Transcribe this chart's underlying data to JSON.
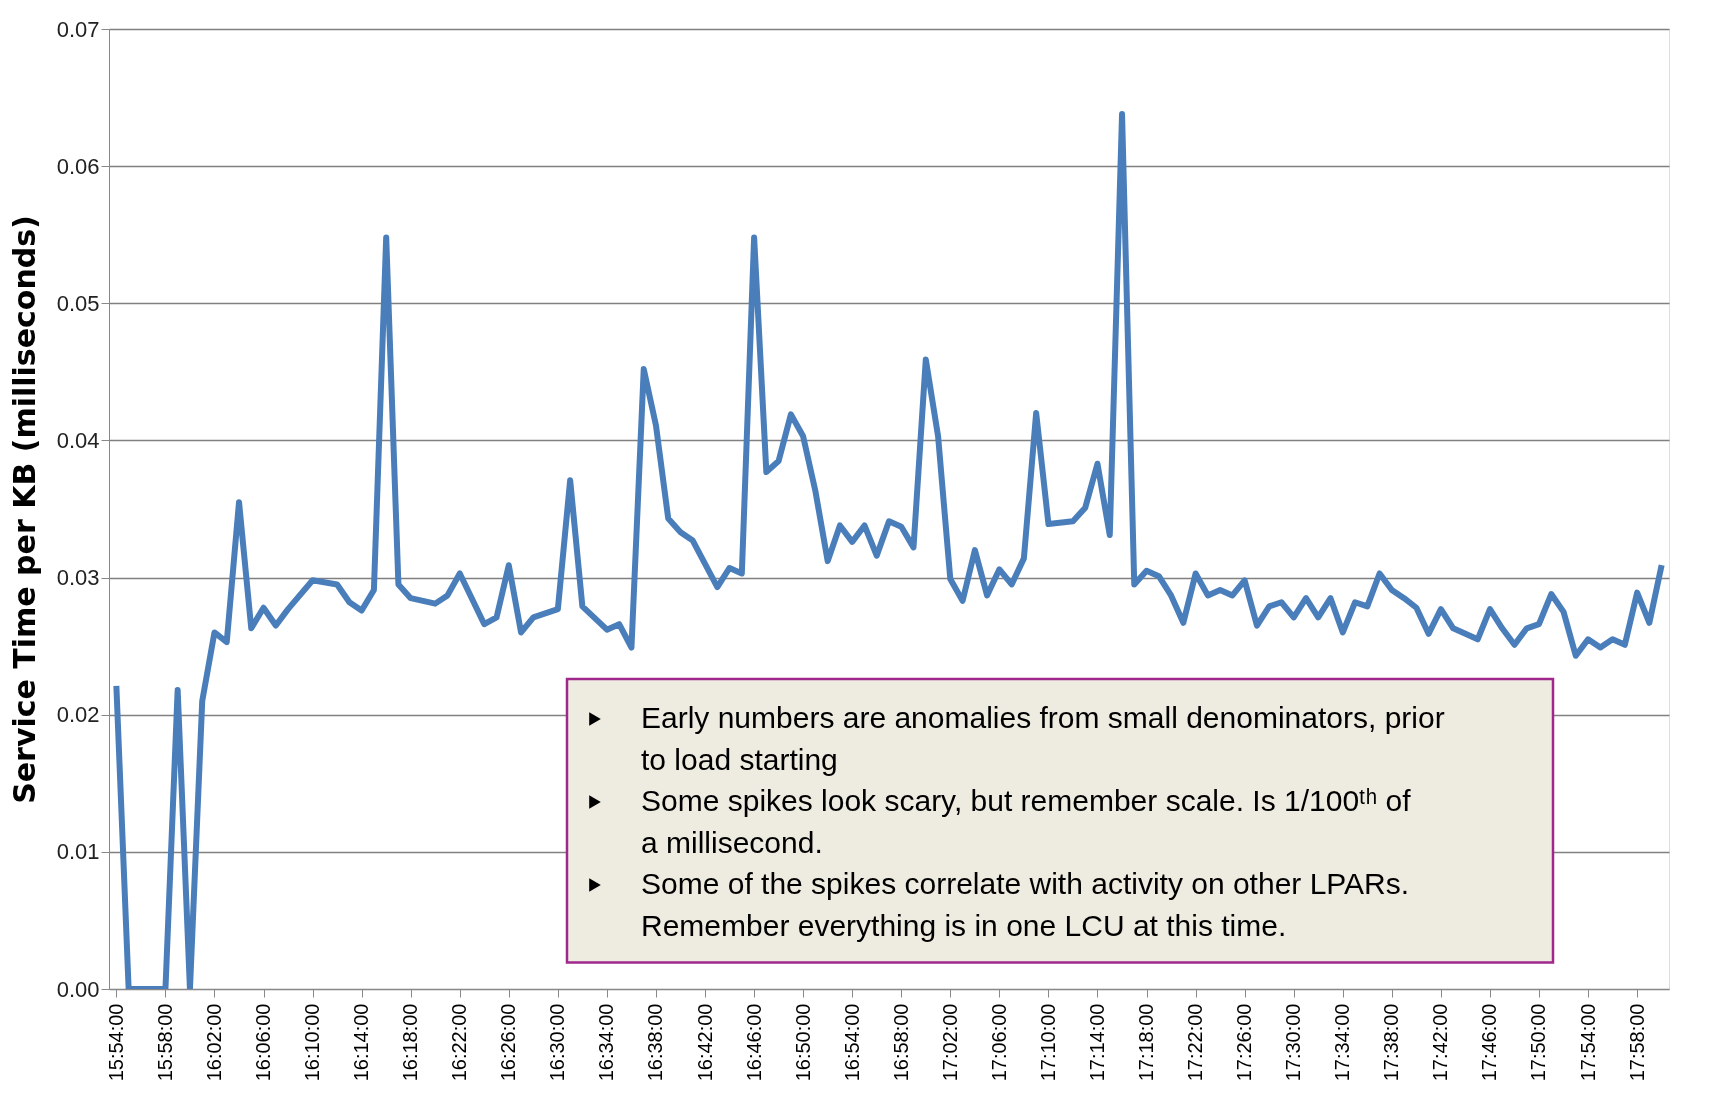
{
  "chart_data": {
    "type": "line",
    "ylabel": "Service Time per KB (milliseconds)",
    "x": [
      15.9,
      15.9167,
      15.9667,
      15.9833,
      16.0,
      16.0167,
      16.0333,
      16.05,
      16.0667,
      16.0833,
      16.1,
      16.1167,
      16.1333,
      16.1667,
      16.2,
      16.2167,
      16.2333,
      16.25,
      16.2667,
      16.2833,
      16.3,
      16.3333,
      16.35,
      16.3667,
      16.4,
      16.4167,
      16.4333,
      16.45,
      16.4667,
      16.5,
      16.5167,
      16.5333,
      16.5667,
      16.5833,
      16.6,
      16.6167,
      16.6333,
      16.65,
      16.6667,
      16.6833,
      16.7167,
      16.7333,
      16.75,
      16.7667,
      16.7833,
      16.8,
      16.8167,
      16.8333,
      16.85,
      16.8667,
      16.8833,
      16.9,
      16.9167,
      16.9333,
      16.95,
      16.9667,
      16.9833,
      17.0,
      17.0167,
      17.0333,
      17.05,
      17.0667,
      17.0833,
      17.1,
      17.1167,
      17.1333,
      17.15,
      17.1667,
      17.2,
      17.2167,
      17.2333,
      17.25,
      17.2667,
      17.2833,
      17.3,
      17.3167,
      17.3333,
      17.35,
      17.3667,
      17.3833,
      17.4,
      17.4167,
      17.4333,
      17.45,
      17.4667,
      17.4833,
      17.5,
      17.5167,
      17.5333,
      17.55,
      17.5667,
      17.5833,
      17.6,
      17.6167,
      17.6333,
      17.65,
      17.6667,
      17.6833,
      17.7,
      17.7167,
      17.75,
      17.7667,
      17.7833,
      17.8,
      17.8167,
      17.8333,
      17.85,
      17.8667,
      17.8833,
      17.9,
      17.9167,
      17.9333,
      17.95,
      17.9667,
      17.9833,
      18.0
    ],
    "series": [
      {
        "color": "#4a7ebb",
        "values": [
          0.0221,
          0,
          0,
          0.0218,
          0,
          0.021,
          0.026,
          0.0253,
          0.0355,
          0.0263,
          0.0278,
          0.0265,
          0.0277,
          0.0298,
          0.0295,
          0.0282,
          0.0276,
          0.0291,
          0.0548,
          0.0295,
          0.0285,
          0.0281,
          0.0287,
          0.0303,
          0.0266,
          0.0271,
          0.0309,
          0.026,
          0.0271,
          0.0277,
          0.0371,
          0.0279,
          0.0262,
          0.0266,
          0.0249,
          0.0452,
          0.0411,
          0.0343,
          0.0333,
          0.0327,
          0.0293,
          0.0307,
          0.0303,
          0.0548,
          0.0377,
          0.0385,
          0.0419,
          0.0403,
          0.0363,
          0.0312,
          0.0338,
          0.0326,
          0.0338,
          0.0316,
          0.0341,
          0.0337,
          0.0322,
          0.0459,
          0.0403,
          0.0299,
          0.0283,
          0.032,
          0.0287,
          0.0306,
          0.0295,
          0.0314,
          0.042,
          0.0339,
          0.0341,
          0.0351,
          0.0383,
          0.0331,
          0.0638,
          0.0295,
          0.0305,
          0.0301,
          0.0287,
          0.0267,
          0.0303,
          0.0287,
          0.0291,
          0.0287,
          0.0298,
          0.0265,
          0.0279,
          0.0282,
          0.0271,
          0.0285,
          0.0271,
          0.0285,
          0.026,
          0.0282,
          0.0279,
          0.0303,
          0.0291,
          0.0285,
          0.0278,
          0.0259,
          0.0277,
          0.0263,
          0.0255,
          0.0277,
          0.0263,
          0.0251,
          0.0263,
          0.0266,
          0.0288,
          0.0275,
          0.0243,
          0.0255,
          0.0249,
          0.0255,
          0.0251,
          0.0289,
          0.0267,
          0.0309
        ]
      }
    ],
    "xlim": [
      15.89,
      18.01
    ],
    "xticks": [
      {
        "value": 15.9,
        "label": "15:54:00"
      },
      {
        "value": 15.9667,
        "label": "15:58:00"
      },
      {
        "value": 16.0333,
        "label": "16:02:00"
      },
      {
        "value": 16.1,
        "label": "16:06:00"
      },
      {
        "value": 16.1667,
        "label": "16:10:00"
      },
      {
        "value": 16.2333,
        "label": "16:14:00"
      },
      {
        "value": 16.3,
        "label": "16:18:00"
      },
      {
        "value": 16.3667,
        "label": "16:22:00"
      },
      {
        "value": 16.4333,
        "label": "16:26:00"
      },
      {
        "value": 16.5,
        "label": "16:30:00"
      },
      {
        "value": 16.5667,
        "label": "16:34:00"
      },
      {
        "value": 16.6333,
        "label": "16:38:00"
      },
      {
        "value": 16.7,
        "label": "16:42:00"
      },
      {
        "value": 16.7667,
        "label": "16:46:00"
      },
      {
        "value": 16.8333,
        "label": "16:50:00"
      },
      {
        "value": 16.9,
        "label": "16:54:00"
      },
      {
        "value": 16.9667,
        "label": "16:58:00"
      },
      {
        "value": 17.0333,
        "label": "17:02:00"
      },
      {
        "value": 17.1,
        "label": "17:06:00"
      },
      {
        "value": 17.1667,
        "label": "17:10:00"
      },
      {
        "value": 17.2333,
        "label": "17:14:00"
      },
      {
        "value": 17.3,
        "label": "17:18:00"
      },
      {
        "value": 17.3667,
        "label": "17:22:00"
      },
      {
        "value": 17.4333,
        "label": "17:26:00"
      },
      {
        "value": 17.5,
        "label": "17:30:00"
      },
      {
        "value": 17.5667,
        "label": "17:34:00"
      },
      {
        "value": 17.6333,
        "label": "17:38:00"
      },
      {
        "value": 17.7,
        "label": "17:42:00"
      },
      {
        "value": 17.7667,
        "label": "17:46:00"
      },
      {
        "value": 17.8333,
        "label": "17:50:00"
      },
      {
        "value": 17.9,
        "label": "17:54:00"
      },
      {
        "value": 17.9667,
        "label": "17:58:00"
      }
    ],
    "ylim": [
      0,
      0.07
    ],
    "yticks": [
      {
        "value": 0,
        "label": "0.00"
      },
      {
        "value": 0.01,
        "label": "0.01"
      },
      {
        "value": 0.02,
        "label": "0.02"
      },
      {
        "value": 0.03,
        "label": "0.03"
      },
      {
        "value": 0.04,
        "label": "0.04"
      },
      {
        "value": 0.05,
        "label": "0.05"
      },
      {
        "value": 0.06,
        "label": "0.06"
      },
      {
        "value": 0.07,
        "label": "0.07"
      }
    ],
    "grid": "y",
    "line_style": "solid",
    "annotations": [
      "Early numbers are anomalies from small denominators, prior to load starting",
      "Some spikes look scary, but remember scale. Is 1/100ᵗʰ of a millisecond.",
      "Some of the spikes correlate with activity on other LPARs. Remember everything is in one LCU at this time."
    ]
  }
}
